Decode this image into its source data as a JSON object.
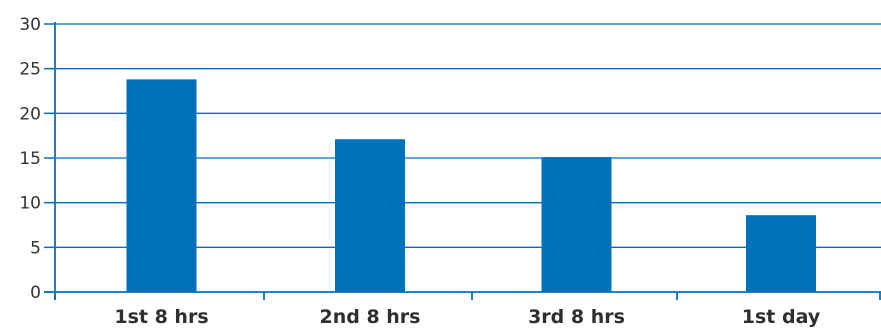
{
  "chart_data": {
    "type": "bar",
    "title": "",
    "xlabel": "",
    "ylabel": "",
    "categories": [
      "1st 8 hrs",
      "2nd 8 hrs",
      "3rd 8 hrs",
      "1st day"
    ],
    "values": [
      23.8,
      17.1,
      15.1,
      8.6
    ],
    "ylim": [
      0,
      30
    ],
    "yticks": [
      0,
      5,
      10,
      15,
      20,
      25,
      30
    ],
    "ytick_labels": [
      "0",
      "5",
      "10",
      "15",
      "20",
      "25",
      "30"
    ],
    "grid": true,
    "legend": "none",
    "colors": {
      "bar": "#0071ba",
      "grid": "#0071ba",
      "axis": "#0071ba",
      "text": "#333333"
    }
  }
}
